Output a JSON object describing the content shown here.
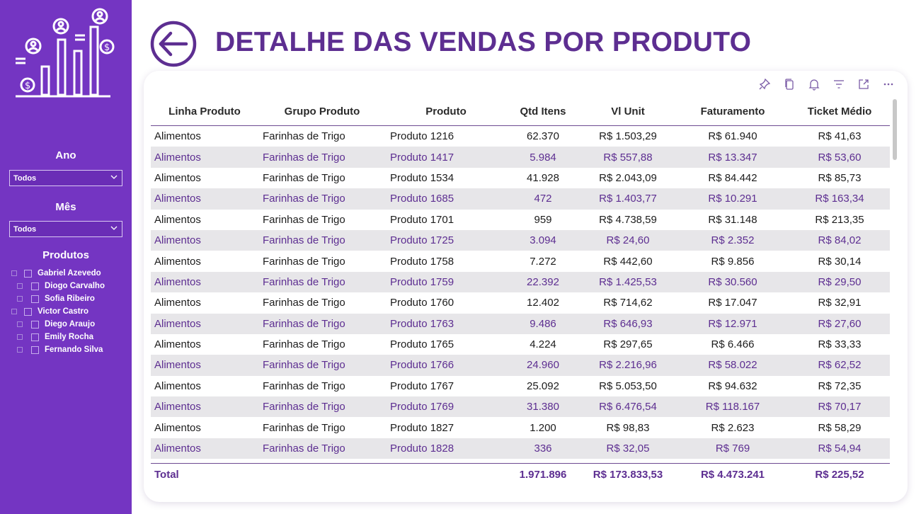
{
  "page": {
    "title": "DETALHE DAS VENDAS POR PRODUTO"
  },
  "colors": {
    "sidebar": "#7435c2",
    "title": "#5d2e91",
    "row_alt": "#e7e6e9"
  },
  "filters": {
    "ano": {
      "label": "Ano",
      "value": "Todos"
    },
    "mes": {
      "label": "Mês",
      "value": "Todos"
    },
    "produtos": {
      "label": "Produtos",
      "items": [
        {
          "label": "Gabriel Azevedo",
          "level": 0
        },
        {
          "label": "Diogo Carvalho",
          "level": 1
        },
        {
          "label": "Sofia Ribeiro",
          "level": 1
        },
        {
          "label": "Victor Castro",
          "level": 0
        },
        {
          "label": "Diego Araujo",
          "level": 1
        },
        {
          "label": "Emily Rocha",
          "level": 1
        },
        {
          "label": "Fernando Silva",
          "level": 1
        }
      ]
    }
  },
  "table": {
    "headers": [
      "Linha Produto",
      "Grupo Produto",
      "Produto",
      "Qtd Itens",
      "Vl Unit",
      "Faturamento",
      "Ticket Médio"
    ],
    "rows": [
      [
        "Alimentos",
        "Farinhas de Trigo",
        "Produto 1216",
        "62.370",
        "R$ 1.503,29",
        "R$ 61.940",
        "R$ 41,63"
      ],
      [
        "Alimentos",
        "Farinhas de Trigo",
        "Produto 1417",
        "5.984",
        "R$ 557,88",
        "R$ 13.347",
        "R$ 53,60"
      ],
      [
        "Alimentos",
        "Farinhas de Trigo",
        "Produto 1534",
        "41.928",
        "R$ 2.043,09",
        "R$ 84.442",
        "R$ 85,73"
      ],
      [
        "Alimentos",
        "Farinhas de Trigo",
        "Produto 1685",
        "472",
        "R$ 1.403,77",
        "R$ 10.291",
        "R$ 163,34"
      ],
      [
        "Alimentos",
        "Farinhas de Trigo",
        "Produto 1701",
        "959",
        "R$ 4.738,59",
        "R$ 31.148",
        "R$ 213,35"
      ],
      [
        "Alimentos",
        "Farinhas de Trigo",
        "Produto 1725",
        "3.094",
        "R$ 24,60",
        "R$ 2.352",
        "R$ 84,02"
      ],
      [
        "Alimentos",
        "Farinhas de Trigo",
        "Produto 1758",
        "7.272",
        "R$ 442,60",
        "R$ 9.856",
        "R$ 30,14"
      ],
      [
        "Alimentos",
        "Farinhas de Trigo",
        "Produto 1759",
        "22.392",
        "R$ 1.425,53",
        "R$ 30.560",
        "R$ 29,50"
      ],
      [
        "Alimentos",
        "Farinhas de Trigo",
        "Produto 1760",
        "12.402",
        "R$ 714,62",
        "R$ 17.047",
        "R$ 32,91"
      ],
      [
        "Alimentos",
        "Farinhas de Trigo",
        "Produto 1763",
        "9.486",
        "R$ 646,93",
        "R$ 12.971",
        "R$ 27,60"
      ],
      [
        "Alimentos",
        "Farinhas de Trigo",
        "Produto 1765",
        "4.224",
        "R$ 297,65",
        "R$ 6.466",
        "R$ 33,33"
      ],
      [
        "Alimentos",
        "Farinhas de Trigo",
        "Produto 1766",
        "24.960",
        "R$ 2.216,96",
        "R$ 58.022",
        "R$ 62,52"
      ],
      [
        "Alimentos",
        "Farinhas de Trigo",
        "Produto 1767",
        "25.092",
        "R$ 5.053,50",
        "R$ 94.632",
        "R$ 72,35"
      ],
      [
        "Alimentos",
        "Farinhas de Trigo",
        "Produto 1769",
        "31.380",
        "R$ 6.476,54",
        "R$ 118.167",
        "R$ 70,17"
      ],
      [
        "Alimentos",
        "Farinhas de Trigo",
        "Produto 1827",
        "1.200",
        "R$ 98,83",
        "R$ 2.623",
        "R$ 58,29"
      ],
      [
        "Alimentos",
        "Farinhas de Trigo",
        "Produto 1828",
        "336",
        "R$ 32,05",
        "R$ 769",
        "R$ 54,94"
      ]
    ],
    "total": [
      "Total",
      "",
      "",
      "1.971.896",
      "R$ 173.833,53",
      "R$ 4.473.241",
      "R$ 225,52"
    ]
  },
  "icons": {
    "back": "back-arrow-icon",
    "logo": "sales-chart-logo-icon",
    "visual_header": [
      "pin-icon",
      "copy-icon",
      "bell-icon",
      "filter-icon",
      "focus-mode-icon",
      "more-options-icon"
    ]
  }
}
